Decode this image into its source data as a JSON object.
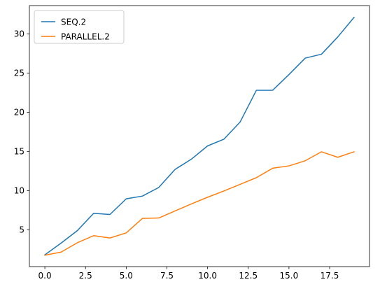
{
  "chart_data": {
    "type": "line",
    "title": "",
    "xlabel": "",
    "ylabel": "",
    "x": [
      0,
      1,
      2,
      3,
      4,
      5,
      6,
      7,
      8,
      9,
      10,
      11,
      12,
      13,
      14,
      15,
      16,
      17,
      18,
      19
    ],
    "series": [
      {
        "name": "SEQ.2",
        "color": "#1f77b4",
        "values": [
          1.8,
          3.3,
          4.9,
          7.1,
          6.95,
          8.95,
          9.3,
          10.4,
          12.7,
          14.0,
          15.7,
          16.55,
          18.75,
          22.8,
          22.8,
          24.8,
          26.9,
          27.4,
          29.6,
          32.1
        ]
      },
      {
        "name": "PARALLEL.2",
        "color": "#ff7f0e",
        "values": [
          1.75,
          2.15,
          3.35,
          4.25,
          3.95,
          4.6,
          6.45,
          6.5,
          7.4,
          8.3,
          9.15,
          9.95,
          10.8,
          11.65,
          12.85,
          13.15,
          13.8,
          14.95,
          14.25,
          14.95
        ]
      }
    ],
    "xlim": [
      -0.95,
      19.95
    ],
    "ylim": [
      0.3,
      33.6
    ],
    "xticks": [
      "0.0",
      "2.5",
      "5.0",
      "7.5",
      "10.0",
      "12.5",
      "15.0",
      "17.5"
    ],
    "yticks": [
      "5",
      "10",
      "15",
      "20",
      "25",
      "30"
    ],
    "legend_position": "top-left",
    "grid": false
  }
}
